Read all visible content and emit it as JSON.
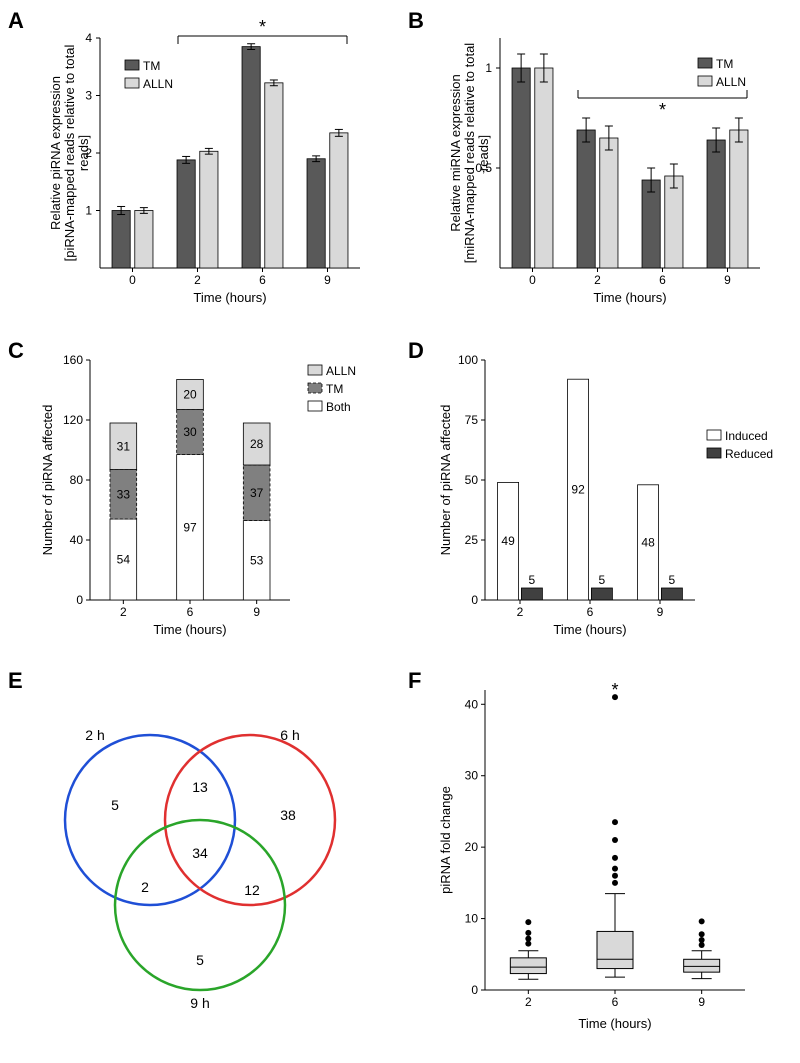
{
  "panelA": {
    "label": "A",
    "type": "bar",
    "ylabel_line1": "Relative piRNA expression",
    "ylabel_line2": "[piRNA-mapped reads relative to total",
    "ylabel_line3": "reads]",
    "xlabel": "Time (hours)",
    "categories": [
      "0",
      "2",
      "6",
      "9"
    ],
    "series": [
      {
        "name": "TM",
        "color": "#595959",
        "values": [
          1.0,
          1.88,
          3.85,
          1.9
        ],
        "err": [
          0.07,
          0.06,
          0.05,
          0.05
        ]
      },
      {
        "name": "ALLN",
        "color": "#d9d9d9",
        "values": [
          1.0,
          2.03,
          3.22,
          2.35
        ],
        "err": [
          0.05,
          0.05,
          0.05,
          0.06
        ]
      }
    ],
    "ylim": [
      0,
      4
    ],
    "yticks": [
      1,
      2,
      3,
      4
    ],
    "sig_text": "*",
    "sig_start": 1,
    "sig_end": 3,
    "bar_width": 0.28,
    "gap": 0.07
  },
  "panelB": {
    "label": "B",
    "type": "bar",
    "ylabel_line1": "Relative miRNA expression",
    "ylabel_line2": "[miRNA-mapped reads relative to total",
    "ylabel_line3": "reads]",
    "xlabel": "Time (hours)",
    "categories": [
      "0",
      "2",
      "6",
      "9"
    ],
    "series": [
      {
        "name": "TM",
        "color": "#595959",
        "values": [
          1.0,
          0.69,
          0.44,
          0.64
        ],
        "err": [
          0.07,
          0.06,
          0.06,
          0.06
        ]
      },
      {
        "name": "ALLN",
        "color": "#d9d9d9",
        "values": [
          1.0,
          0.65,
          0.46,
          0.69
        ],
        "err": [
          0.07,
          0.06,
          0.06,
          0.06
        ]
      }
    ],
    "ylim": [
      0,
      1.15
    ],
    "yticks": [
      0.5,
      1
    ],
    "ytick_labels": [
      "0,5",
      "1"
    ],
    "sig_text": "*",
    "sig_start": 1,
    "sig_end": 3,
    "bar_width": 0.28,
    "gap": 0.07
  },
  "panelC": {
    "label": "C",
    "type": "stacked_bar",
    "ylabel": "Number of piRNA affected",
    "xlabel": "Time (hours)",
    "categories": [
      "2",
      "6",
      "9"
    ],
    "stacks": [
      {
        "name": "Both",
        "color": "#ffffff",
        "values": [
          54,
          97,
          53
        ]
      },
      {
        "name": "TM",
        "color": "#808080",
        "values": [
          33,
          30,
          37
        ],
        "dashed": true
      },
      {
        "name": "ALLN",
        "color": "#d9d9d9",
        "values": [
          31,
          20,
          28
        ]
      }
    ],
    "ylim": [
      0,
      160
    ],
    "ytick_step": 40,
    "bar_width": 0.4
  },
  "panelD": {
    "label": "D",
    "type": "bar",
    "ylabel": "Number of piRNA affected",
    "xlabel": "Time (hours)",
    "categories": [
      "2",
      "6",
      "9"
    ],
    "series": [
      {
        "name": "Induced",
        "color": "#ffffff",
        "values": [
          49,
          92,
          48
        ]
      },
      {
        "name": "Reduced",
        "color": "#404040",
        "values": [
          5,
          5,
          5
        ]
      }
    ],
    "ylim": [
      0,
      100
    ],
    "ytick_step": 25,
    "bar_width": 0.3,
    "gap": 0.04,
    "show_values": true
  },
  "panelE": {
    "label": "E",
    "type": "venn3",
    "sets": [
      {
        "name": "2 h",
        "color": "#1f4fd6"
      },
      {
        "name": "6 h",
        "color": "#e03030"
      },
      {
        "name": "9 h",
        "color": "#2aa52a"
      }
    ],
    "regions": {
      "a_only": "5",
      "b_only": "38",
      "c_only": "5",
      "ab": "13",
      "ac": "2",
      "bc": "12",
      "abc": "34"
    }
  },
  "panelF": {
    "label": "F",
    "type": "boxplot",
    "ylabel": "piRNA fold change",
    "xlabel": "Time (hours)",
    "categories": [
      "2",
      "6",
      "9"
    ],
    "boxes": [
      {
        "q1": 2.3,
        "median": 3.2,
        "q3": 4.5,
        "wlo": 1.5,
        "whi": 5.5,
        "outliers": [
          6.5,
          7.2,
          8.0,
          9.5
        ]
      },
      {
        "q1": 3.0,
        "median": 4.3,
        "q3": 8.2,
        "wlo": 1.8,
        "whi": 13.5,
        "outliers": [
          15,
          16,
          17,
          18.5,
          21,
          23.5,
          41
        ]
      },
      {
        "q1": 2.5,
        "median": 3.3,
        "q3": 4.3,
        "wlo": 1.6,
        "whi": 5.5,
        "outliers": [
          6.3,
          7.0,
          7.8,
          9.6
        ]
      }
    ],
    "box_color": "#d9d9d9",
    "ylim": [
      0,
      42
    ],
    "ytick_step": 10,
    "sig_text": "*",
    "sig_at": 1
  }
}
